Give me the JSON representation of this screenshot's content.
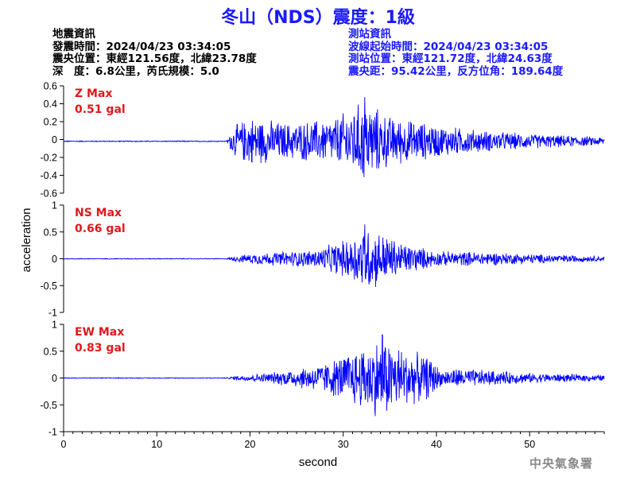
{
  "title": "冬山（NDS）震度：1級",
  "event_info": {
    "heading": "地震資訊",
    "origin_time": "發震時間：2024/04/23 03:34:05",
    "epicenter": "震央位置：東經121.56度，北緯23.78度",
    "depth_magnitude": "深　度：6.8公里，芮氏規模：5.0"
  },
  "station_info": {
    "heading": "測站資訊",
    "wave_start": "波線起始時間：2024/04/23 03:34:05",
    "location": "測站位置：東經121.72度，北緯24.63度",
    "distance": "震央距：95.42公里，反方位角：189.64度"
  },
  "watermark": "中央氣象署",
  "colors": {
    "trace": "#0000ff",
    "title": "#1a1aff",
    "max_label": "#e0191c"
  },
  "chart_data": {
    "type": "line",
    "xlabel": "second",
    "ylabel": "acceleration",
    "xlim": [
      0,
      58
    ],
    "x_ticks": [
      0,
      10,
      20,
      30,
      40,
      50
    ],
    "legend": "none",
    "grid": false,
    "panels": [
      {
        "name": "Z",
        "max_label_name": "Z Max",
        "max_value_text": "0.51 gal",
        "max_value": 0.51,
        "ylim": [
          -0.6,
          0.6
        ],
        "y_ticks": [
          -0.6,
          -0.4,
          -0.2,
          0,
          0.2,
          0.4,
          0.6
        ],
        "y_tick_labels": [
          "-0.6",
          "-0.4",
          "-0.2",
          "0",
          "0.2",
          "0.4",
          "0.6"
        ],
        "baseline": -0.02,
        "envelope": [
          [
            0,
            0.006
          ],
          [
            17.5,
            0.006
          ],
          [
            18.2,
            0.18
          ],
          [
            20,
            0.3
          ],
          [
            24,
            0.22
          ],
          [
            29,
            0.28
          ],
          [
            32.3,
            0.5
          ],
          [
            35,
            0.3
          ],
          [
            40,
            0.2
          ],
          [
            45,
            0.13
          ],
          [
            50,
            0.09
          ],
          [
            58,
            0.05
          ]
        ]
      },
      {
        "name": "NS",
        "max_label_name": "NS Max",
        "max_value_text": "0.66 gal",
        "max_value": 0.66,
        "ylim": [
          -1,
          1
        ],
        "y_ticks": [
          -1,
          -0.5,
          0,
          0.5,
          1
        ],
        "y_tick_labels": [
          "-1",
          "-0.5",
          "0",
          "0.5",
          "1"
        ],
        "baseline": 0,
        "envelope": [
          [
            0,
            0.008
          ],
          [
            17.5,
            0.008
          ],
          [
            18.5,
            0.06
          ],
          [
            21,
            0.12
          ],
          [
            27,
            0.18
          ],
          [
            30.5,
            0.4
          ],
          [
            32.3,
            0.66
          ],
          [
            34,
            0.55
          ],
          [
            36,
            0.35
          ],
          [
            40,
            0.15
          ],
          [
            45,
            0.14
          ],
          [
            50,
            0.1
          ],
          [
            58,
            0.05
          ]
        ]
      },
      {
        "name": "EW",
        "max_label_name": "EW Max",
        "max_value_text": "0.83 gal",
        "max_value": 0.83,
        "ylim": [
          -1,
          1
        ],
        "y_ticks": [
          -1,
          -0.5,
          0,
          0.5,
          1
        ],
        "y_tick_labels": [
          "-1",
          "-0.5",
          "0",
          "0.5",
          "1"
        ],
        "baseline": 0,
        "envelope": [
          [
            0,
            0.008
          ],
          [
            17.5,
            0.008
          ],
          [
            18.5,
            0.05
          ],
          [
            22,
            0.1
          ],
          [
            28,
            0.3
          ],
          [
            31,
            0.55
          ],
          [
            34.2,
            0.83
          ],
          [
            37,
            0.55
          ],
          [
            39.5,
            0.4
          ],
          [
            40.5,
            0.15
          ],
          [
            42,
            0.2
          ],
          [
            46,
            0.15
          ],
          [
            50,
            0.1
          ],
          [
            58,
            0.06
          ]
        ]
      }
    ]
  }
}
